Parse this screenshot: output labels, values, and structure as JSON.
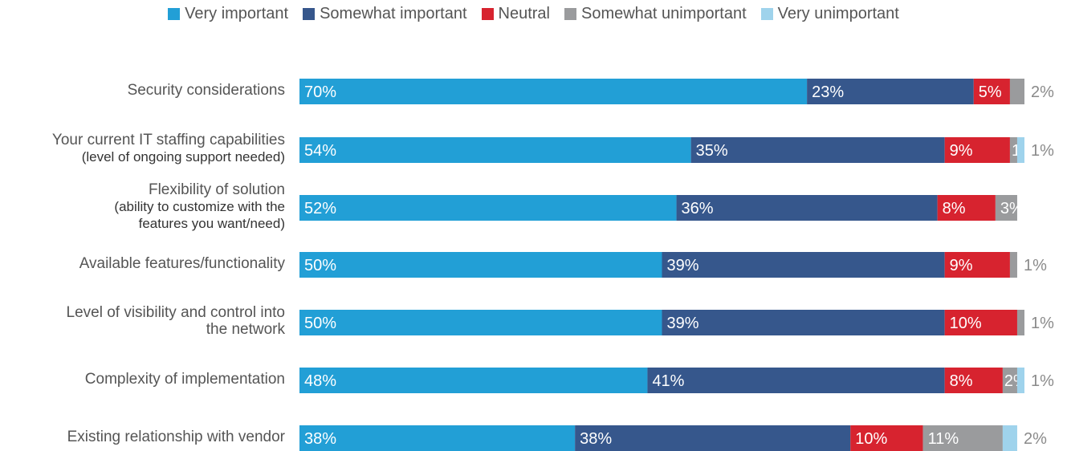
{
  "chart_data": {
    "type": "bar",
    "orientation": "horizontal",
    "stacked": true,
    "legend_position": "top",
    "grid": false,
    "xlim": [
      0,
      100
    ],
    "categories": [
      {
        "label": "Security considerations",
        "sub": ""
      },
      {
        "label": "Your current IT staffing capabilities",
        "sub": "(level of ongoing support needed)"
      },
      {
        "label": "Flexibility of solution",
        "sub": "(ability to customize with the features you want/need)"
      },
      {
        "label": "Available features/functionality",
        "sub": ""
      },
      {
        "label": "Level of visibility and control into the network",
        "sub": ""
      },
      {
        "label": "Complexity of implementation",
        "sub": ""
      },
      {
        "label": "Existing relationship with vendor",
        "sub": ""
      }
    ],
    "series": [
      {
        "name": "Very important",
        "color": "#229fd6",
        "values": [
          70,
          54,
          52,
          50,
          50,
          48,
          38
        ]
      },
      {
        "name": "Somewhat important",
        "color": "#36578c",
        "values": [
          23,
          35,
          36,
          39,
          39,
          41,
          38
        ]
      },
      {
        "name": "Neutral",
        "color": "#d7232f",
        "values": [
          5,
          9,
          8,
          9,
          10,
          8,
          10
        ]
      },
      {
        "name": "Somewhat unimportant",
        "color": "#9a9b9d",
        "values": [
          2,
          1,
          3,
          1,
          1,
          2,
          11
        ]
      },
      {
        "name": "Very unimportant",
        "color": "#9fd3ec",
        "values": [
          0,
          1,
          0,
          0,
          0,
          1,
          2
        ]
      }
    ],
    "segment_labels": [
      [
        "70%",
        "23%",
        "5%",
        "2%",
        ""
      ],
      [
        "54%",
        "35%",
        "9%",
        "1%",
        "1%"
      ],
      [
        "52%",
        "36%",
        "8%",
        "3%",
        ""
      ],
      [
        "50%",
        "39%",
        "9%",
        "1%",
        ""
      ],
      [
        "50%",
        "39%",
        "10%",
        "1%",
        ""
      ],
      [
        "48%",
        "41%",
        "8%",
        "2%",
        "1%"
      ],
      [
        "38%",
        "38%",
        "10%",
        "11%",
        "2%"
      ]
    ]
  }
}
